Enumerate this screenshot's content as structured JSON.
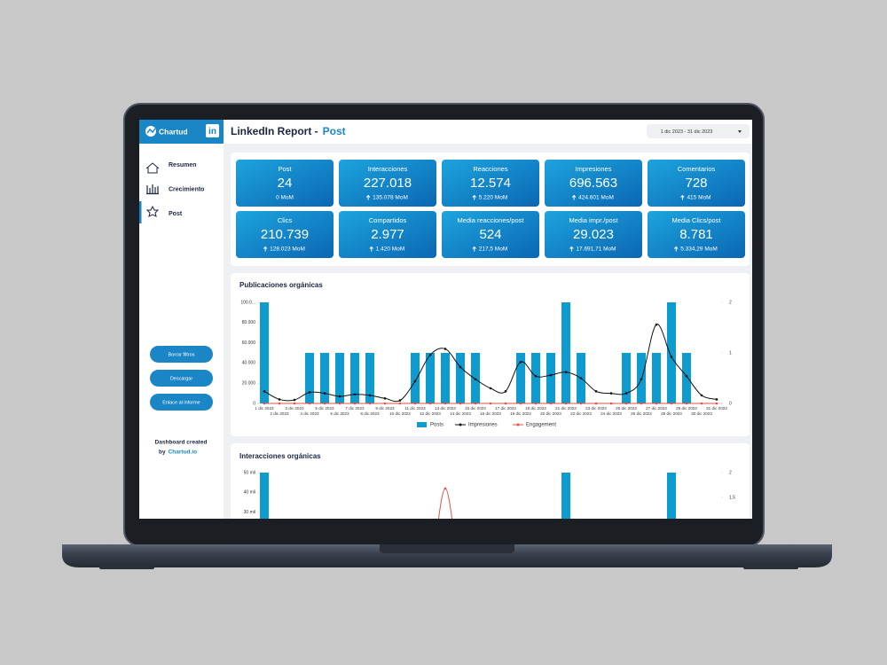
{
  "sidebar": {
    "logo": "Chartud",
    "network": "in",
    "nav": [
      {
        "label": "Resumen",
        "active": false
      },
      {
        "label": "Crecimiento",
        "active": false
      },
      {
        "label": "Post",
        "active": true
      }
    ],
    "buttons": [
      "Borrar filtros",
      "Descargar",
      "Enlace al informe"
    ],
    "footer": {
      "line1": "Dashboard created",
      "by": "by",
      "link": "Chartud.io"
    }
  },
  "header": {
    "title": "LinkedIn Report -",
    "page": "Post",
    "date_range": "1 dic 2023 - 31 dic 2023"
  },
  "kpis": [
    {
      "label": "Post",
      "value": "24",
      "change": "0 MoM",
      "trend": "flat"
    },
    {
      "label": "Interacciones",
      "value": "227.018",
      "change": "135.078 MoM",
      "trend": "up"
    },
    {
      "label": "Reacciones",
      "value": "12.574",
      "change": "5.220 MoM",
      "trend": "up"
    },
    {
      "label": "Impresiones",
      "value": "696.563",
      "change": "424.601 MoM",
      "trend": "up"
    },
    {
      "label": "Comentarios",
      "value": "728",
      "change": "415 MoM",
      "trend": "up"
    },
    {
      "label": "Clics",
      "value": "210.739",
      "change": "128.023 MoM",
      "trend": "up"
    },
    {
      "label": "Compartidos",
      "value": "2.977",
      "change": "1.420 MoM",
      "trend": "up"
    },
    {
      "label": "Media reacciones/post",
      "value": "524",
      "change": "217,5 MoM",
      "trend": "up"
    },
    {
      "label": "Media impr./post",
      "value": "29.023",
      "change": "17.691,71 MoM",
      "trend": "up"
    },
    {
      "label": "Media Clics/post",
      "value": "8.781",
      "change": "5.334,29 MoM",
      "trend": "up"
    }
  ],
  "chart_data": [
    {
      "type": "combo",
      "title": "Publicaciones orgánicas",
      "categories": [
        "1 dic 2023",
        "2 dic 2023",
        "3 dic 2023",
        "4 dic 2023",
        "5 dic 2023",
        "6 dic 2023",
        "7 dic 2023",
        "8 dic 2023",
        "9 dic 2023",
        "10 dic 2023",
        "11 dic 2023",
        "12 dic 2023",
        "13 dic 2023",
        "14 dic 2023",
        "15 dic 2023",
        "16 dic 2023",
        "17 dic 2023",
        "18 dic 2023",
        "19 dic 2023",
        "20 dic 2023",
        "21 dic 2023",
        "22 dic 2023",
        "23 dic 2023",
        "24 dic 2023",
        "25 dic 2023",
        "26 dic 2023",
        "27 dic 2023",
        "28 dic 2023",
        "29 dic 2023",
        "30 dic 2023",
        "31 dic 2023"
      ],
      "series": [
        {
          "name": "Posts",
          "type": "bar",
          "axis": "y2",
          "color": "#0e9bd0",
          "values": [
            2,
            0,
            0,
            1,
            1,
            1,
            1,
            1,
            0,
            0,
            1,
            1,
            1,
            1,
            1,
            0,
            0,
            1,
            1,
            1,
            2,
            1,
            0,
            0,
            1,
            1,
            1,
            2,
            1,
            0,
            0
          ]
        },
        {
          "name": "Impresiones",
          "type": "line",
          "color": "#111111",
          "values": [
            12000,
            4000,
            3500,
            11000,
            10000,
            7000,
            9000,
            8000,
            5000,
            3000,
            22000,
            48000,
            54000,
            36000,
            24000,
            15000,
            12000,
            41000,
            27000,
            28000,
            31000,
            25000,
            12000,
            10000,
            10000,
            24000,
            78000,
            46000,
            27000,
            8000,
            4000
          ]
        },
        {
          "name": "Engagement",
          "type": "line",
          "axis": "y2",
          "color": "#e0524a",
          "values": [
            0,
            0,
            0,
            0,
            0,
            0,
            0,
            0,
            0,
            0,
            0,
            0,
            0,
            0,
            0,
            0,
            0,
            0,
            0,
            0,
            0,
            0,
            0,
            0,
            0,
            0,
            0,
            0,
            0,
            0,
            0
          ]
        }
      ],
      "ylim": [
        0,
        100000
      ],
      "yticks": [
        0,
        {
          "value": 20000,
          "label": "20.000"
        },
        {
          "value": 40000,
          "label": "40.000"
        },
        {
          "value": 60000,
          "label": "60.000"
        },
        {
          "value": 80000,
          "label": "80.000"
        },
        {
          "value": 100000,
          "label": "100.0..."
        }
      ],
      "y2lim": [
        0,
        2
      ],
      "y2ticks": [
        0,
        1,
        2
      ],
      "legend": "bottom"
    },
    {
      "type": "combo",
      "title": "Interacciones orgánicas",
      "series": [
        {
          "type": "bar",
          "axis": "y2",
          "color": "#0e9bd0",
          "values": [
            2,
            0,
            0,
            1,
            1,
            1,
            1,
            1,
            0,
            0,
            1,
            1,
            1,
            1,
            1,
            0,
            0,
            1,
            1,
            1,
            2,
            1,
            0,
            0,
            1,
            1,
            1,
            2,
            1,
            0,
            0
          ]
        },
        {
          "type": "line",
          "axis": "y2",
          "color": "#e0524a",
          "values": [
            0,
            0,
            0,
            0,
            0,
            0,
            0,
            0,
            0,
            0,
            0,
            0,
            1.68,
            0,
            0,
            0,
            0,
            0,
            0,
            0,
            0,
            0,
            0,
            0,
            0,
            0,
            0,
            0,
            0,
            0,
            0
          ]
        }
      ],
      "ylim": [
        0,
        50000
      ],
      "yticks": [
        {
          "value": 30000,
          "label": "30 mil"
        },
        {
          "value": 40000,
          "label": "40 mil"
        },
        {
          "value": 50000,
          "label": "50 mil"
        }
      ],
      "y2lim": [
        0,
        2
      ],
      "y2ticks": [
        {
          "value": 1.5,
          "label": "1,5"
        },
        2
      ]
    }
  ]
}
